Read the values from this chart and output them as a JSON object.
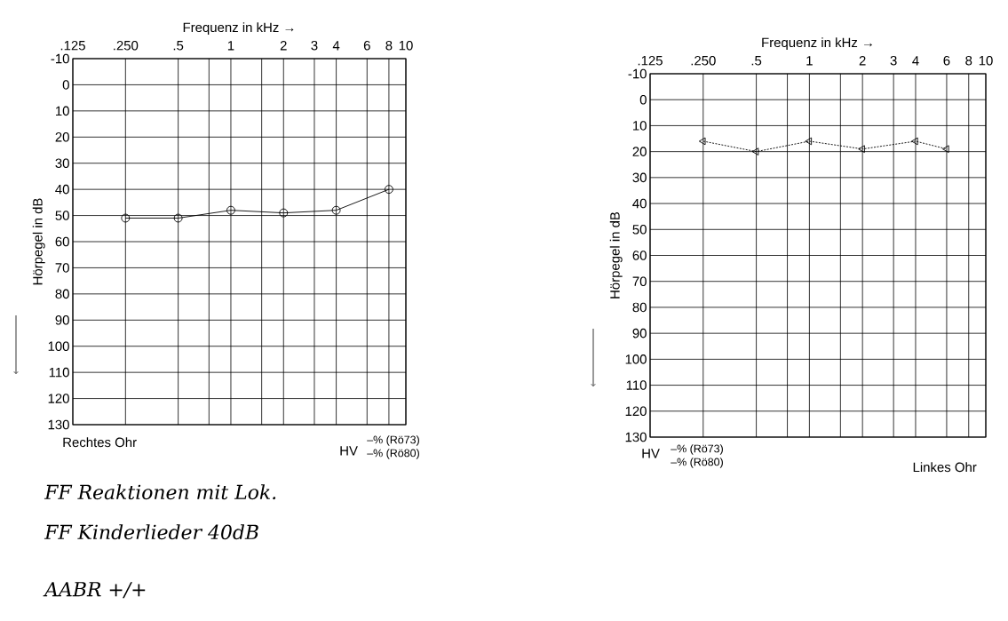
{
  "chart_data": [
    {
      "type": "line",
      "xlabel": "Frequenz in kHz →",
      "ylabel": "Hörpegel in dB",
      "x": [
        0.25,
        0.5,
        1,
        2,
        4,
        8
      ],
      "series": [
        {
          "color": "#000000",
          "values": [
            51,
            51,
            48,
            49,
            48,
            40
          ]
        }
      ],
      "marker": "circle",
      "line_style": "solid",
      "log": "x",
      "grid": true,
      "xlim": [
        0.125,
        10
      ],
      "xticks": [
        {
          "value": 0.125,
          "label": ".125"
        },
        {
          "value": 0.25,
          "label": ".250"
        },
        {
          "value": 0.5,
          "label": ".5"
        },
        {
          "value": 0.75,
          "label": null
        },
        1,
        {
          "value": 1.5,
          "label": null
        },
        2,
        3,
        4,
        6,
        8,
        10
      ],
      "ylim": [
        130,
        -10
      ],
      "yticks": [
        -10,
        0,
        10,
        20,
        30,
        40,
        50,
        60,
        70,
        80,
        90,
        100,
        110,
        120,
        130
      ],
      "annotations": [
        "Rechtes Ohr",
        "HV",
        "–% (Rö73)",
        "–% (Rö80)",
        "FF Reaktionen mit Lok.",
        "FF Kinderlieder 40dB",
        "AABR +/+"
      ]
    },
    {
      "type": "line",
      "xlabel": "Frequenz in kHz →",
      "ylabel": "Hörpegel in dB",
      "x": [
        0.25,
        0.5,
        1,
        2,
        4,
        6
      ],
      "series": [
        {
          "color": "#000000",
          "values": [
            16,
            20,
            16,
            19,
            16,
            19
          ]
        }
      ],
      "marker": "triangle",
      "line_style": "dotted",
      "log": "x",
      "grid": true,
      "xlim": [
        0.125,
        10
      ],
      "xticks": [
        {
          "value": 0.125,
          "label": ".125"
        },
        {
          "value": 0.25,
          "label": ".250"
        },
        {
          "value": 0.5,
          "label": ".5"
        },
        {
          "value": 0.75,
          "label": null
        },
        1,
        {
          "value": 1.5,
          "label": null
        },
        2,
        3,
        4,
        6,
        8,
        10
      ],
      "ylim": [
        130,
        -10
      ],
      "yticks": [
        -10,
        0,
        10,
        20,
        30,
        40,
        50,
        60,
        70,
        80,
        90,
        100,
        110,
        120,
        130
      ],
      "annotations": [
        "HV",
        "–% (Rö73)",
        "–% (Rö80)",
        "Linkes Ohr"
      ]
    }
  ]
}
